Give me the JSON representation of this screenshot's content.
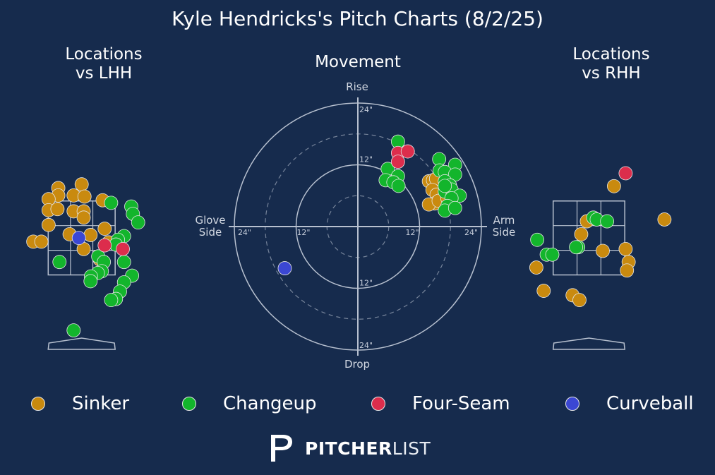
{
  "colors": {
    "background": "#162b4d",
    "grid": "#b7c0cf",
    "Sinker": "#c98a0f",
    "Changeup": "#13b52c",
    "Four-Seam": "#dc2d4c",
    "Curveball": "#3b47d3"
  },
  "title": "Kyle Hendricks's Pitch Charts (8/2/25)",
  "panels": {
    "lhh_title": "Locations\nvs LHH",
    "movement_title": "Movement",
    "rhh_title": "Locations\nvs RHH"
  },
  "movement_labels": {
    "rise": "Rise",
    "drop": "Drop",
    "glove": "Glove\nSide",
    "arm": "Arm\nSide",
    "ring_ticks": [
      "12\"",
      "24\""
    ]
  },
  "legend": [
    {
      "name": "Sinker"
    },
    {
      "name": "Changeup"
    },
    {
      "name": "Four-Seam"
    },
    {
      "name": "Curveball"
    }
  ],
  "logo": {
    "bold": "PITCHER",
    "light": "LIST"
  },
  "chart_data": [
    {
      "type": "scatter",
      "title": "Locations vs LHH",
      "xlim": [
        -1.5,
        2.7
      ],
      "ylim": [
        -0.8,
        5.5
      ],
      "strike_zone": {
        "x": [
          -0.83,
          0.83
        ],
        "y": [
          1.5,
          3.5
        ]
      },
      "series": [
        {
          "name": "Sinker",
          "points": [
            [
              -0.58,
              3.85
            ],
            [
              -0.58,
              3.65
            ],
            [
              -0.82,
              3.55
            ],
            [
              -0.82,
              3.25
            ],
            [
              -0.6,
              3.28
            ],
            [
              -0.2,
              3.65
            ],
            [
              0.0,
              3.95
            ],
            [
              0.07,
              3.62
            ],
            [
              -0.2,
              3.22
            ],
            [
              0.05,
              3.22
            ],
            [
              0.05,
              3.05
            ],
            [
              0.52,
              3.52
            ],
            [
              -0.82,
              2.85
            ],
            [
              -0.3,
              2.6
            ],
            [
              0.22,
              2.58
            ],
            [
              0.57,
              2.75
            ],
            [
              -1.2,
              2.4
            ],
            [
              -1.0,
              2.4
            ],
            [
              0.05,
              2.2
            ],
            [
              0.67,
              2.38
            ],
            [
              0.45,
              1.92
            ]
          ]
        },
        {
          "name": "Changeup",
          "points": [
            [
              0.73,
              3.45
            ],
            [
              1.23,
              3.35
            ],
            [
              1.27,
              3.15
            ],
            [
              1.4,
              2.92
            ],
            [
              1.05,
              2.55
            ],
            [
              0.9,
              2.45
            ],
            [
              0.85,
              2.32
            ],
            [
              0.41,
              2.0
            ],
            [
              0.55,
              1.85
            ],
            [
              -0.55,
              1.85
            ],
            [
              1.05,
              1.85
            ],
            [
              0.5,
              1.6
            ],
            [
              0.4,
              1.55
            ],
            [
              0.23,
              1.46
            ],
            [
              1.25,
              1.48
            ],
            [
              1.05,
              1.3
            ],
            [
              0.95,
              1.05
            ],
            [
              0.85,
              0.85
            ],
            [
              0.22,
              1.33
            ],
            [
              0.73,
              0.82
            ],
            [
              -0.2,
              0.0
            ]
          ]
        },
        {
          "name": "Four-Seam",
          "points": [
            [
              0.57,
              2.3
            ],
            [
              1.02,
              2.2
            ]
          ]
        },
        {
          "name": "Curveball",
          "points": [
            [
              -0.07,
              2.5
            ]
          ]
        }
      ]
    },
    {
      "type": "scatter",
      "title": "Movement",
      "xlabel_left": "Glove Side",
      "xlabel_right": "Arm Side",
      "ylabel_top": "Rise",
      "ylabel_bottom": "Drop",
      "units": "inches",
      "rings": [
        6,
        12,
        18,
        24
      ],
      "xlim": [
        -24,
        24
      ],
      "ylim": [
        -24,
        24
      ],
      "series": [
        {
          "name": "Sinker",
          "points": [
            [
              13.8,
              8.8
            ],
            [
              14.6,
              9.0
            ],
            [
              15.2,
              9.3
            ],
            [
              14.5,
              7.1
            ],
            [
              15.3,
              6.2
            ],
            [
              14.9,
              4.5
            ],
            [
              13.8,
              4.3
            ],
            [
              15.7,
              5.0
            ],
            [
              17.4,
              5.5
            ],
            [
              18.8,
              5.8
            ]
          ]
        },
        {
          "name": "Changeup",
          "points": [
            [
              7.8,
              16.5
            ],
            [
              5.8,
              11.2
            ],
            [
              7.8,
              9.8
            ],
            [
              5.4,
              9.0
            ],
            [
              6.9,
              8.6
            ],
            [
              7.9,
              7.9
            ],
            [
              15.8,
              13.1
            ],
            [
              18.9,
              12.0
            ],
            [
              15.9,
              10.9
            ],
            [
              16.9,
              10.6
            ],
            [
              18.9,
              10.1
            ],
            [
              16.9,
              8.8
            ],
            [
              17.9,
              8.0
            ],
            [
              16.9,
              6.8
            ],
            [
              18.2,
              7.2
            ],
            [
              19.8,
              6.0
            ],
            [
              18.2,
              5.5
            ],
            [
              17.4,
              4.0
            ],
            [
              16.9,
              3.1
            ],
            [
              18.9,
              3.6
            ],
            [
              16.9,
              7.9
            ]
          ]
        },
        {
          "name": "Four-Seam",
          "points": [
            [
              7.8,
              14.3
            ],
            [
              9.7,
              14.6
            ],
            [
              7.8,
              12.6
            ]
          ]
        },
        {
          "name": "Curveball",
          "points": [
            [
              -14.2,
              -8.1
            ]
          ]
        }
      ]
    },
    {
      "type": "scatter",
      "title": "Locations vs RHH",
      "xlim": [
        -1.3,
        2.3
      ],
      "ylim": [
        -0.8,
        5.5
      ],
      "strike_zone": {
        "x": [
          -0.83,
          0.83
        ],
        "y": [
          1.5,
          3.5
        ]
      },
      "series": [
        {
          "name": "Sinker",
          "points": [
            [
              0.58,
              3.9
            ],
            [
              1.75,
              3.0
            ],
            [
              -0.05,
              2.95
            ],
            [
              -0.18,
              2.6
            ],
            [
              0.32,
              2.15
            ],
            [
              0.85,
              2.2
            ],
            [
              0.92,
              1.85
            ],
            [
              0.88,
              1.62
            ],
            [
              -1.22,
              1.7
            ],
            [
              -1.05,
              1.07
            ],
            [
              -0.38,
              0.95
            ],
            [
              -0.22,
              0.82
            ]
          ]
        },
        {
          "name": "Changeup",
          "points": [
            [
              0.1,
              3.05
            ],
            [
              0.18,
              3.0
            ],
            [
              0.42,
              2.95
            ],
            [
              -1.2,
              2.45
            ],
            [
              -0.25,
              2.25
            ],
            [
              -0.3,
              2.25
            ],
            [
              -0.98,
              2.05
            ],
            [
              -0.85,
              2.05
            ]
          ]
        },
        {
          "name": "Four-Seam",
          "points": [
            [
              0.85,
              4.25
            ]
          ]
        },
        {
          "name": "Curveball",
          "points": []
        }
      ]
    }
  ]
}
